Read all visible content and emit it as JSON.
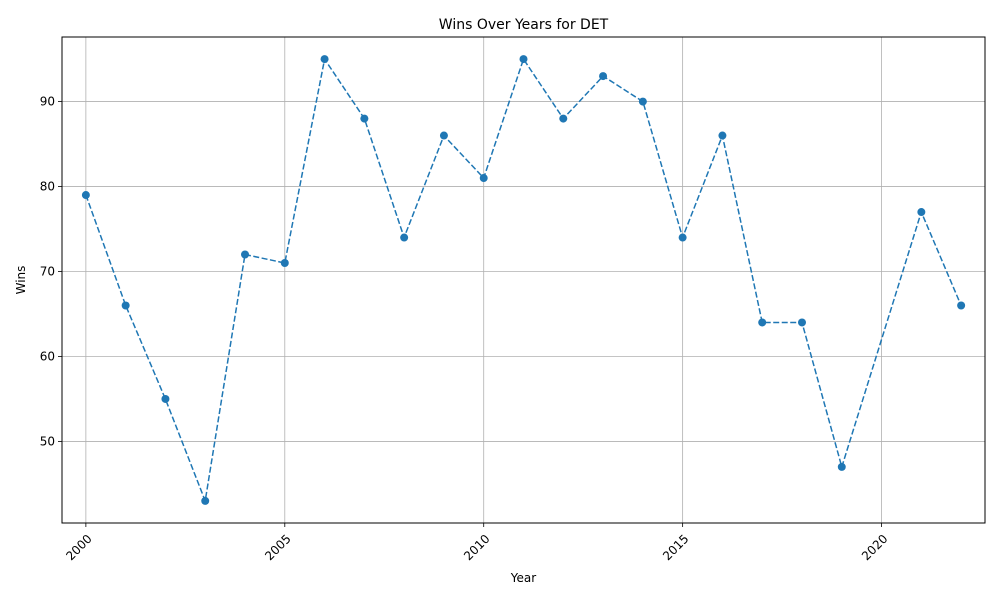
{
  "chart_data": {
    "type": "line",
    "title": "Wins Over Years for DET",
    "xlabel": "Year",
    "ylabel": "Wins",
    "xlim": [
      1999.4,
      2022.6
    ],
    "ylim": [
      40.4,
      97.6
    ],
    "xticks": [
      2000,
      2005,
      2010,
      2015,
      2020
    ],
    "yticks": [
      50,
      60,
      70,
      80,
      90
    ],
    "grid": true,
    "line_style": "dashed",
    "marker": "circle",
    "color": "#1f77b4",
    "series": [
      {
        "x": [
          2000,
          2001,
          2002,
          2003,
          2004,
          2005,
          2006,
          2007,
          2008,
          2009,
          2010,
          2011,
          2012,
          2013,
          2014,
          2015,
          2016,
          2017,
          2018,
          2019,
          2021,
          2022
        ],
        "values": [
          79,
          66,
          55,
          43,
          72,
          71,
          95,
          88,
          74,
          86,
          81,
          95,
          88,
          93,
          90,
          74,
          86,
          64,
          64,
          47,
          77,
          66
        ]
      }
    ]
  }
}
